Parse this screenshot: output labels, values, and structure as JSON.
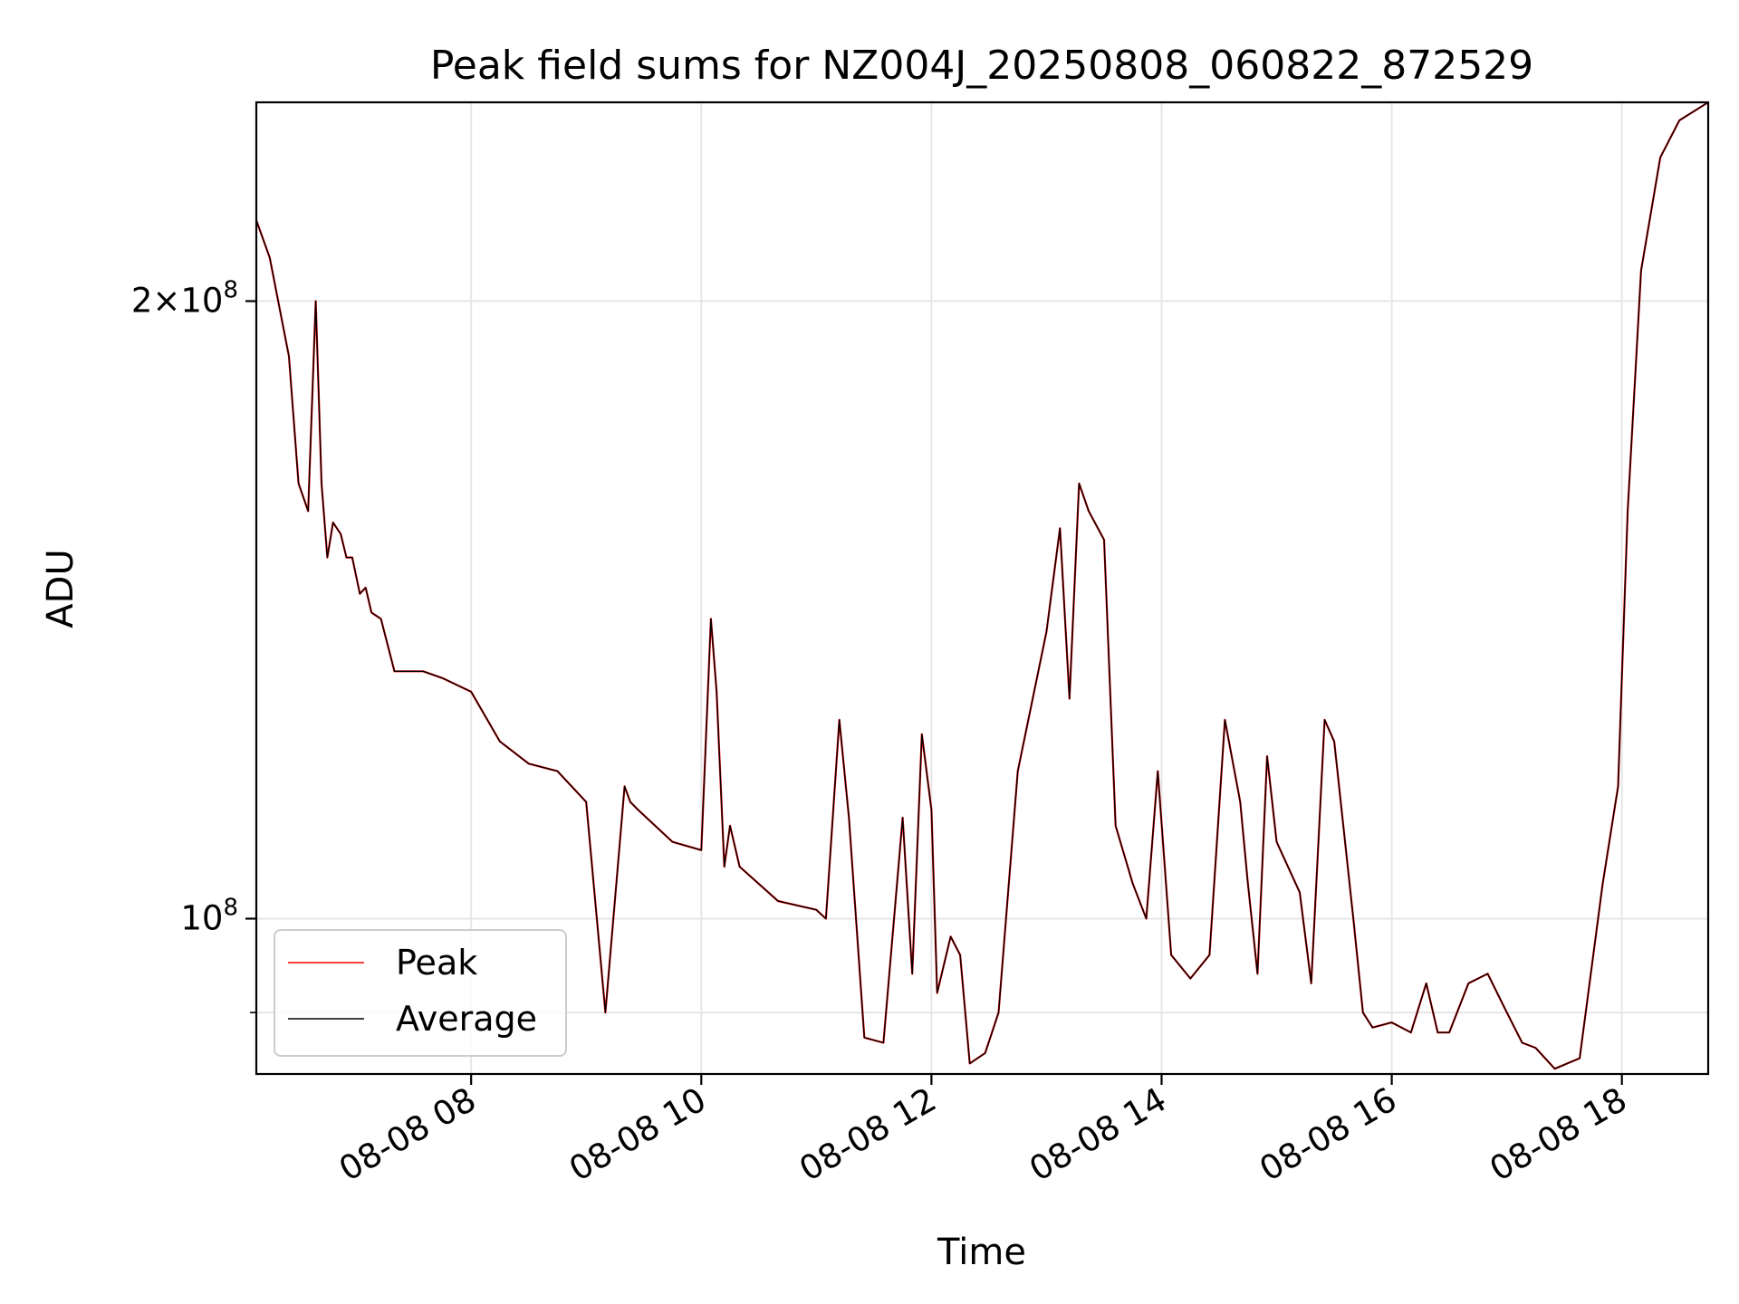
{
  "chart_data": {
    "type": "line",
    "title": "Peak field sums for NZ004J_20250808_060822_872529",
    "xlabel": "Time",
    "ylabel": "ADU",
    "x_range": [
      "08-08 06:08",
      "08-08 18:45"
    ],
    "y_range": [
      84000000,
      250000000
    ],
    "y_scale": "log",
    "grid": true,
    "legend": "lower-left",
    "x_ticks": [
      {
        "value": "08-08 08:00",
        "label": "08-08 08"
      },
      {
        "value": "08-08 10:00",
        "label": "08-08 10"
      },
      {
        "value": "08-08 12:00",
        "label": "08-08 12"
      },
      {
        "value": "08-08 14:00",
        "label": "08-08 14"
      },
      {
        "value": "08-08 16:00",
        "label": "08-08 16"
      },
      {
        "value": "08-08 18:00",
        "label": "08-08 18"
      }
    ],
    "y_major_ticks": [
      {
        "value": 100000000,
        "base": "10",
        "exp": "8"
      },
      {
        "value": 200000000,
        "base": "2×10",
        "exp": "8"
      }
    ],
    "y_minor_gridlines": [
      90000000
    ],
    "x": [
      "08-08 06:08",
      "08-08 06:15",
      "08-08 06:25",
      "08-08 06:30",
      "08-08 06:35",
      "08-08 06:39",
      "08-08 06:42",
      "08-08 06:45",
      "08-08 06:48",
      "08-08 06:52",
      "08-08 06:55",
      "08-08 06:58",
      "08-08 07:02",
      "08-08 07:05",
      "08-08 07:08",
      "08-08 07:13",
      "08-08 07:20",
      "08-08 07:27",
      "08-08 07:35",
      "08-08 07:45",
      "08-08 08:00",
      "08-08 08:15",
      "08-08 08:30",
      "08-08 08:45",
      "08-08 09:00",
      "08-08 09:10",
      "08-08 09:20",
      "08-08 09:23",
      "08-08 09:27",
      "08-08 09:45",
      "08-08 10:00",
      "08-08 10:05",
      "08-08 10:08",
      "08-08 10:12",
      "08-08 10:15",
      "08-08 10:20",
      "08-08 10:40",
      "08-08 11:00",
      "08-08 11:05",
      "08-08 11:12",
      "08-08 11:17",
      "08-08 11:25",
      "08-08 11:35",
      "08-08 11:45",
      "08-08 11:50",
      "08-08 11:55",
      "08-08 12:00",
      "08-08 12:03",
      "08-08 12:10",
      "08-08 12:15",
      "08-08 12:20",
      "08-08 12:28",
      "08-08 12:35",
      "08-08 12:45",
      "08-08 13:00",
      "08-08 13:07",
      "08-08 13:12",
      "08-08 13:17",
      "08-08 13:22",
      "08-08 13:30",
      "08-08 13:36",
      "08-08 13:45",
      "08-08 13:52",
      "08-08 13:58",
      "08-08 14:05",
      "08-08 14:15",
      "08-08 14:25",
      "08-08 14:33",
      "08-08 14:41",
      "08-08 14:45",
      "08-08 14:50",
      "08-08 14:55",
      "08-08 15:00",
      "08-08 15:12",
      "08-08 15:18",
      "08-08 15:25",
      "08-08 15:30",
      "08-08 15:40",
      "08-08 15:45",
      "08-08 15:50",
      "08-08 16:00",
      "08-08 16:10",
      "08-08 16:18",
      "08-08 16:24",
      "08-08 16:30",
      "08-08 16:40",
      "08-08 16:50",
      "08-08 17:00",
      "08-08 17:08",
      "08-08 17:15",
      "08-08 17:25",
      "08-08 17:38",
      "08-08 17:50",
      "08-08 17:58",
      "08-08 18:03",
      "08-08 18:10",
      "08-08 18:20",
      "08-08 18:30",
      "08-08 18:45"
    ],
    "series": [
      {
        "name": "Peak",
        "color": "#ff0000",
        "values": [
          219000000,
          210000000,
          188000000,
          163000000,
          158000000,
          200000000,
          163000000,
          150000000,
          156000000,
          154000000,
          150000000,
          150000000,
          144000000,
          145000000,
          141000000,
          140000000,
          132000000,
          132000000,
          132000000,
          131000000,
          129000000,
          122000000,
          119000000,
          118000000,
          114000000,
          90000000,
          116000000,
          114000000,
          113000000,
          109000000,
          108000000,
          140000000,
          129000000,
          106000000,
          111000000,
          106000000,
          102000000,
          101000000,
          100000000,
          125000000,
          112000000,
          87500000,
          87000000,
          112000000,
          94000000,
          123000000,
          113000000,
          92000000,
          98000000,
          96000000,
          85000000,
          86000000,
          90000000,
          118000000,
          138000000,
          155000000,
          128000000,
          163000000,
          158000000,
          153000000,
          111000000,
          104000000,
          100000000,
          118000000,
          96000000,
          93500000,
          96000000,
          125000000,
          114000000,
          104000000,
          94000000,
          120000000,
          109000000,
          103000000,
          93000000,
          125000000,
          122000000,
          100000000,
          90000000,
          88500000,
          89000000,
          88000000,
          93000000,
          88000000,
          88000000,
          93000000,
          94000000,
          90000000,
          87000000,
          86500000,
          84500000,
          85500000,
          104000000,
          116000000,
          158000000,
          207000000,
          235000000,
          245000000,
          250000000
        ]
      },
      {
        "name": "Average",
        "color": "#000000",
        "values": [
          219000000,
          210000000,
          188000000,
          163000000,
          158000000,
          200000000,
          163000000,
          150000000,
          156000000,
          154000000,
          150000000,
          150000000,
          144000000,
          145000000,
          141000000,
          140000000,
          132000000,
          132000000,
          132000000,
          131000000,
          129000000,
          122000000,
          119000000,
          118000000,
          114000000,
          90000000,
          116000000,
          114000000,
          113000000,
          109000000,
          108000000,
          140000000,
          129000000,
          106000000,
          111000000,
          106000000,
          102000000,
          101000000,
          100000000,
          125000000,
          112000000,
          87500000,
          87000000,
          112000000,
          94000000,
          123000000,
          113000000,
          92000000,
          98000000,
          96000000,
          85000000,
          86000000,
          90000000,
          118000000,
          138000000,
          155000000,
          128000000,
          163000000,
          158000000,
          153000000,
          111000000,
          104000000,
          100000000,
          118000000,
          96000000,
          93500000,
          96000000,
          125000000,
          114000000,
          104000000,
          94000000,
          120000000,
          109000000,
          103000000,
          93000000,
          125000000,
          122000000,
          100000000,
          90000000,
          88500000,
          89000000,
          88000000,
          93000000,
          88000000,
          88000000,
          93000000,
          94000000,
          90000000,
          87000000,
          86500000,
          84500000,
          85500000,
          104000000,
          116000000,
          158000000,
          207000000,
          235000000,
          245000000,
          250000000
        ]
      }
    ]
  }
}
